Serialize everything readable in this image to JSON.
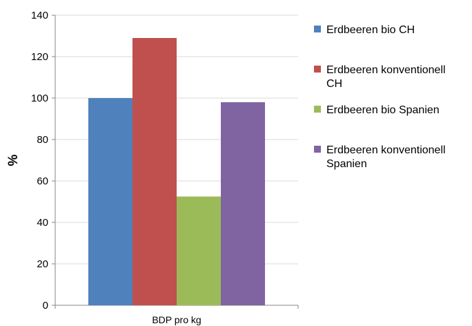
{
  "chart_data": {
    "type": "bar",
    "title": "",
    "xlabel": "",
    "ylabel": "%",
    "categories": [
      "BDP pro kg"
    ],
    "ylim": [
      0,
      140
    ],
    "yticks": [
      0,
      20,
      40,
      60,
      80,
      100,
      120,
      140
    ],
    "grid": true,
    "legend_position": "right",
    "series": [
      {
        "name": "Erdbeeren bio CH",
        "legend_lines": [
          "Erdbeeren bio CH"
        ],
        "values": [
          100
        ],
        "color": "#4F81BD"
      },
      {
        "name": "Erdbeeren konventionell CH",
        "legend_lines": [
          "Erdbeeren konventionell",
          "CH"
        ],
        "values": [
          129
        ],
        "color": "#C0504D"
      },
      {
        "name": "Erdbeeren bio Spanien",
        "legend_lines": [
          "Erdbeeren bio Spanien"
        ],
        "values": [
          52.5
        ],
        "color": "#9BBB59"
      },
      {
        "name": "Erdbeeren konventionell Spanien",
        "legend_lines": [
          "Erdbeeren konventionell",
          "Spanien"
        ],
        "values": [
          98
        ],
        "color": "#8064A2"
      }
    ]
  }
}
